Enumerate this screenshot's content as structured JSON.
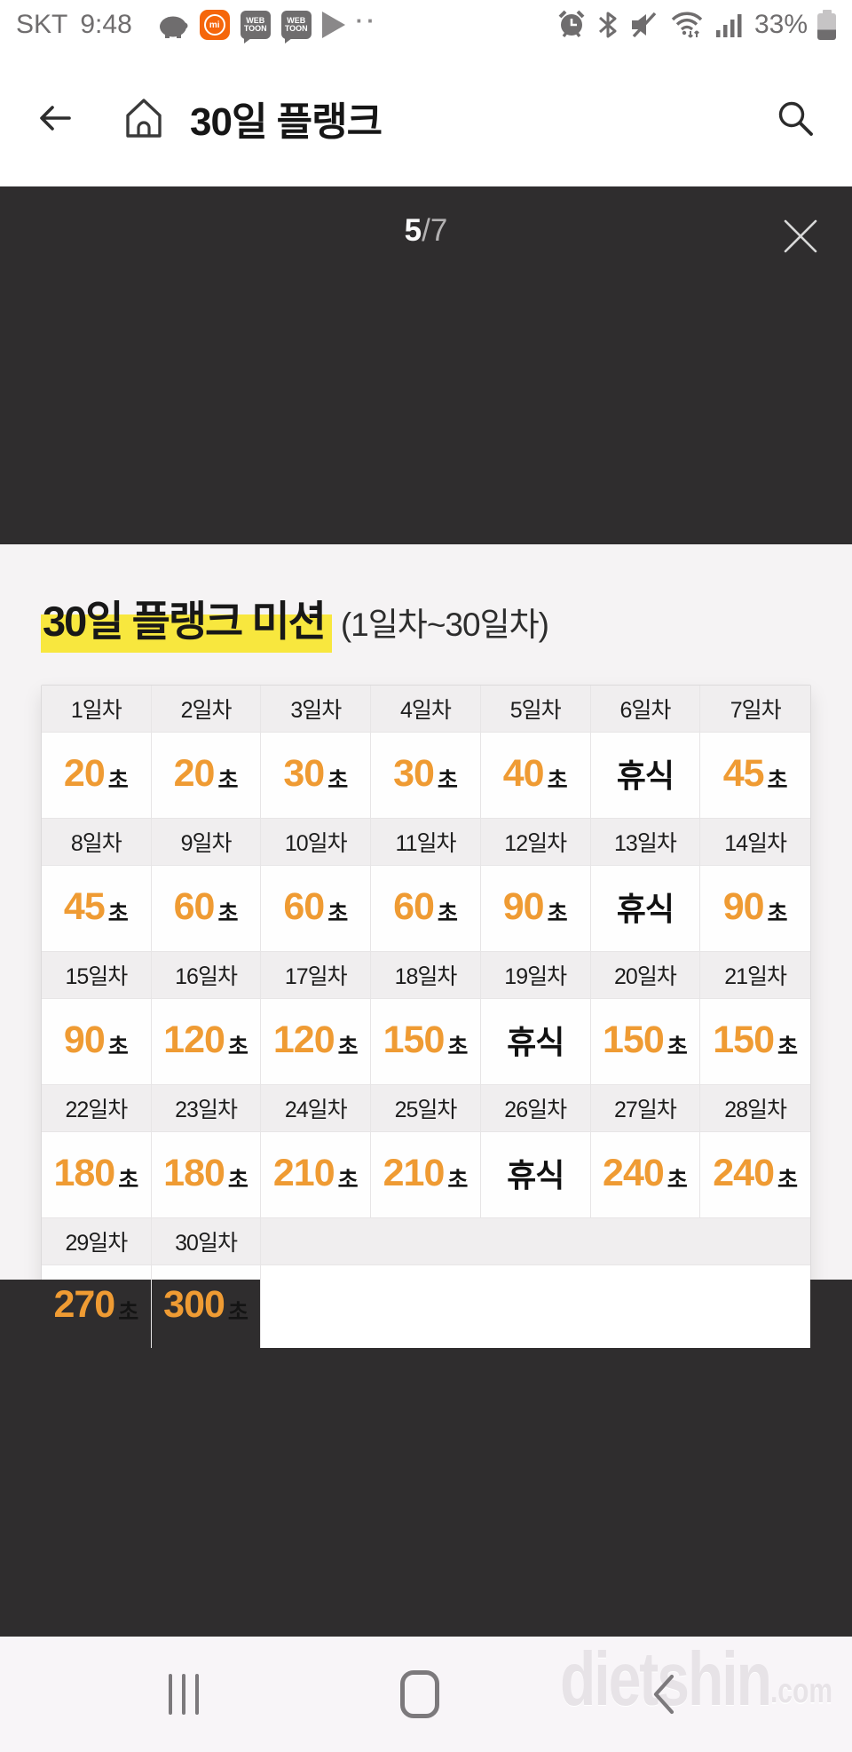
{
  "status_bar": {
    "carrier": "SKT",
    "time": "9:48",
    "battery_percent": "33%",
    "mi_label": "mi",
    "webtoon_line1": "WEB",
    "webtoon_line2": "TOON",
    "more_dots": "··",
    "notification_icons": [
      "piggy-bank-icon",
      "mi-band-icon",
      "webtoon-icon",
      "webtoon-icon",
      "play-icon",
      "more-dots-icon"
    ],
    "system_icons": [
      "alarm-icon",
      "bluetooth-icon",
      "mute-icon",
      "wifi-icon",
      "signal-icon",
      "battery-icon"
    ]
  },
  "header": {
    "title": "30일 플랭크",
    "icons": [
      "back-arrow-icon",
      "home-icon",
      "search-icon"
    ]
  },
  "viewer": {
    "current_page": "5",
    "separator": "/",
    "total_pages": "7",
    "close_icon": "close-icon"
  },
  "mission": {
    "title": "30일 플랭크 미션",
    "subtitle": "(1일차~30일차)"
  },
  "plank_table": {
    "columns": 7,
    "rest_label": "휴식",
    "seconds_suffix": "초",
    "groups": [
      {
        "days": [
          "1일차",
          "2일차",
          "3일차",
          "4일차",
          "5일차",
          "6일차",
          "7일차"
        ],
        "values": [
          "20",
          "20",
          "30",
          "30",
          "40",
          "휴식",
          "45"
        ]
      },
      {
        "days": [
          "8일차",
          "9일차",
          "10일차",
          "11일차",
          "12일차",
          "13일차",
          "14일차"
        ],
        "values": [
          "45",
          "60",
          "60",
          "60",
          "90",
          "휴식",
          "90"
        ]
      },
      {
        "days": [
          "15일차",
          "16일차",
          "17일차",
          "18일차",
          "19일차",
          "20일차",
          "21일차"
        ],
        "values": [
          "90",
          "120",
          "120",
          "150",
          "휴식",
          "150",
          "150"
        ]
      },
      {
        "days": [
          "22일차",
          "23일차",
          "24일차",
          "25일차",
          "26일차",
          "27일차",
          "28일차"
        ],
        "values": [
          "180",
          "180",
          "210",
          "210",
          "휴식",
          "240",
          "240"
        ]
      },
      {
        "days": [
          "29일차",
          "30일차"
        ],
        "values": [
          "270",
          "300"
        ]
      }
    ]
  },
  "nav_bar": {
    "watermark_main": "dietshin",
    "watermark_suffix": ".com",
    "buttons": [
      "recents-button",
      "home-button",
      "back-button"
    ]
  },
  "colors": {
    "accent_orange": "#EF9B33",
    "highlight_yellow": "#F8E73E",
    "viewer_dark": "#2F2D2E",
    "content_bg": "#F5F3F4",
    "table_header_bg": "#F0EEEF",
    "mi_orange": "#F5660B"
  }
}
